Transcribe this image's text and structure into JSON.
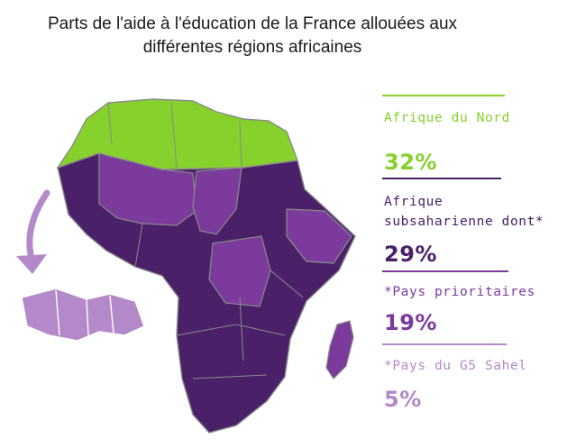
{
  "title": {
    "line1": "Parts de l'aide à l'éducation de la France allouées aux",
    "line2": "différentes régions africaines"
  },
  "colors": {
    "north": "#86d12c",
    "subsaharan_dark": "#4a2169",
    "subsaharan_mid": "#7b3a9c",
    "sahel_light": "#b489c9",
    "border": "#8a8a8a"
  },
  "legend": {
    "items": [
      {
        "label": "Afrique du Nord",
        "value": "32%",
        "color": "#86d12c",
        "value_color": "#86d12c"
      },
      {
        "label_line1": "Afrique",
        "label_line2": "subsaharienne dont*",
        "value": "29%",
        "color": "#4a2169",
        "value_color": "#4a2169"
      },
      {
        "label": "*Pays prioritaires",
        "value": "19%",
        "color": "#7b3a9c",
        "value_color": "#7b3a9c"
      },
      {
        "label": "*Pays du G5 Sahel",
        "value": "5%",
        "color": "#b489c9",
        "value_color": "#b489c9"
      }
    ]
  },
  "icons": {
    "callout_arrow": "curved-arrow-icon",
    "sahel_inset": "g5-sahel-map-icon"
  }
}
